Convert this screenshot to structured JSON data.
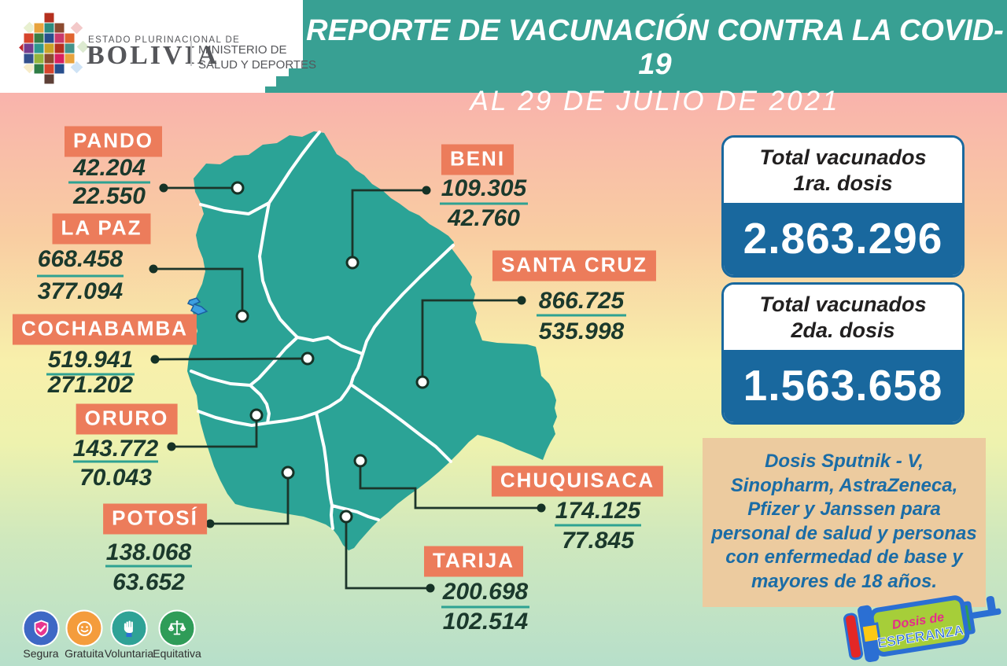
{
  "header": {
    "logo_pretitle": "ESTADO PLURINACIONAL DE",
    "logo_title": "BOLIVIA",
    "ministry_line1": "MINISTERIO DE",
    "ministry_line2": "SALUD Y DEPORTES",
    "title_line1": "REPORTE DE VACUNACIÓN CONTRA LA COVID-19",
    "title_line2": "AL 29 DE JULIO DE 2021"
  },
  "totals": [
    {
      "label_line1": "Total vacunados",
      "label_line2": "1ra. dosis",
      "value": "2.863.296"
    },
    {
      "label_line1": "Total vacunados",
      "label_line2": "2da. dosis",
      "value": "1.563.658"
    }
  ],
  "departments": [
    {
      "id": "pando",
      "name": "PANDO",
      "dose1": "42.204",
      "dose2": "22.550"
    },
    {
      "id": "lapaz",
      "name": "LA PAZ",
      "dose1": "668.458",
      "dose2": "377.094"
    },
    {
      "id": "cochabamba",
      "name": "COCHABAMBA",
      "dose1": "519.941",
      "dose2": "271.202"
    },
    {
      "id": "oruro",
      "name": "ORURO",
      "dose1": "143.772",
      "dose2": "70.043"
    },
    {
      "id": "potosi",
      "name": "POTOSÍ",
      "dose1": "138.068",
      "dose2": "63.652"
    },
    {
      "id": "beni",
      "name": "BENI",
      "dose1": "109.305",
      "dose2": "42.760"
    },
    {
      "id": "santacruz",
      "name": "SANTA CRUZ",
      "dose1": "866.725",
      "dose2": "535.998"
    },
    {
      "id": "chuquisaca",
      "name": "CHUQUISACA",
      "dose1": "174.125",
      "dose2": "77.845"
    },
    {
      "id": "tarija",
      "name": "TARIJA",
      "dose1": "200.698",
      "dose2": "102.514"
    }
  ],
  "note_lines": [
    "Dosis Sputnik - V,",
    "Sinopharm, AstraZeneca,",
    "Pfizer y Janssen para",
    "personal de salud y personas",
    "con enfermedad de base y",
    "mayores de 18 años."
  ],
  "principles": [
    {
      "label": "Segura",
      "icon": "shield-check-icon",
      "color": "#3e68c5"
    },
    {
      "label": "Gratuita",
      "icon": "smiley-icon",
      "color": "#f49c3c"
    },
    {
      "label": "Voluntaria",
      "icon": "raised-hand-icon",
      "color": "#2fa296"
    },
    {
      "label": "Equitativa",
      "icon": "balance-scale-icon",
      "color": "#2f9c58"
    }
  ],
  "campaign_logo": {
    "line1": "Dosis de",
    "line2": "ESPERANZA"
  },
  "colors": {
    "header_teal": "#38a093",
    "map_teal": "#2ba396",
    "chip_orange": "#ec7c5b",
    "number_green": "#1b392c",
    "underline_teal": "#2ea292",
    "card_blue": "#19689e",
    "note_bg": "#eccb9f",
    "note_text": "#1a6ca6"
  }
}
